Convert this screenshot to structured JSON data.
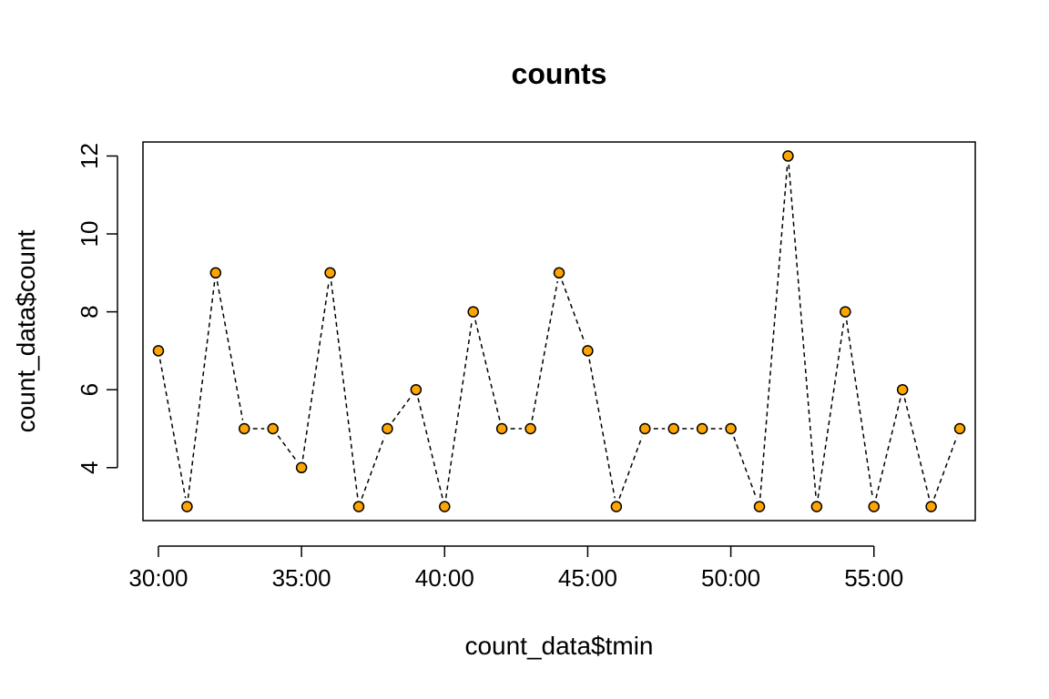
{
  "chart_data": {
    "type": "line",
    "title": "counts",
    "xlabel": "count_data$tmin",
    "ylabel": "count_data$count",
    "x_tick_labels": [
      "30:00",
      "35:00",
      "40:00",
      "45:00",
      "50:00",
      "55:00"
    ],
    "x_tick_values": [
      30,
      35,
      40,
      45,
      50,
      55
    ],
    "y_tick_labels": [
      "4",
      "6",
      "8",
      "10",
      "12"
    ],
    "y_tick_values": [
      4,
      6,
      8,
      10,
      12
    ],
    "xlim": [
      29.46,
      58.54
    ],
    "ylim": [
      2.64,
      12.36
    ],
    "x": [
      30,
      31,
      32,
      33,
      34,
      35,
      36,
      37,
      38,
      39,
      40,
      41,
      42,
      43,
      44,
      45,
      46,
      47,
      48,
      49,
      50,
      51,
      52,
      53,
      54,
      55,
      56,
      57,
      58
    ],
    "series": [
      {
        "values": [
          7,
          3,
          9,
          5,
          5,
          4,
          9,
          3,
          5,
          6,
          3,
          8,
          5,
          5,
          9,
          7,
          3,
          5,
          5,
          5,
          5,
          3,
          12,
          3,
          8,
          3,
          6,
          3,
          5
        ],
        "line_style": "dashed",
        "marker": "circle",
        "marker_fill": "#FFA500",
        "marker_edge": "#000000",
        "line_color": "#000000"
      }
    ],
    "grid": false,
    "box": true
  }
}
